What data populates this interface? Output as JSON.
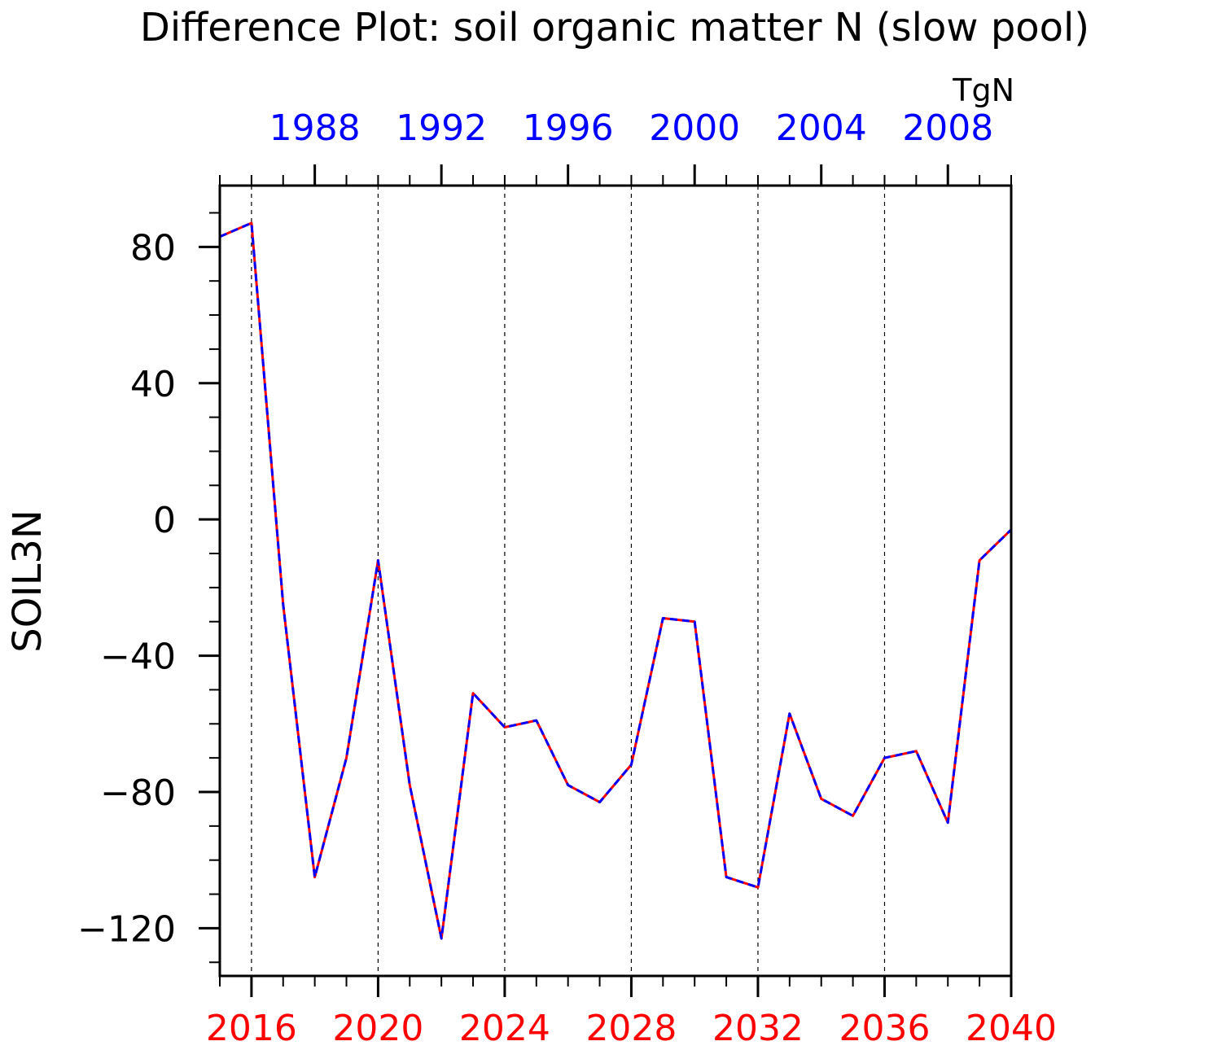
{
  "chart_data": {
    "type": "line",
    "title": "Difference Plot: soil organic matter N (slow pool)",
    "units": "TgN",
    "ylabel": "SOIL3N",
    "ylim": [
      -134,
      98
    ],
    "yticks": [
      -120,
      -80,
      -40,
      0,
      40,
      80
    ],
    "ytick_labels": [
      "−120",
      "−80",
      "−40",
      "0",
      "40",
      "80"
    ],
    "grid": "vertical dashed",
    "x_bottom": {
      "range": [
        2015,
        2040
      ],
      "ticks": [
        2016,
        2020,
        2024,
        2028,
        2032,
        2036,
        2040
      ],
      "color": "#ff0000"
    },
    "x_top": {
      "range": [
        1985,
        2010
      ],
      "ticks": [
        1988,
        1992,
        1996,
        2000,
        2004,
        2008
      ],
      "color": "#0000ff"
    },
    "x": [
      2015,
      2016,
      2017,
      2018,
      2019,
      2020,
      2021,
      2022,
      2023,
      2024,
      2025,
      2026,
      2027,
      2028,
      2029,
      2030,
      2031,
      2032,
      2033,
      2034,
      2035,
      2036,
      2037,
      2038,
      2039,
      2040
    ],
    "series": [
      {
        "color": "#ff0000",
        "style": "solid",
        "values": [
          83,
          87,
          -25,
          -105,
          -70,
          -12,
          -78,
          -123,
          -51,
          -61,
          -59,
          -78,
          -83,
          -72,
          -29,
          -30,
          -105,
          -108,
          -57,
          -82,
          -87,
          -70,
          -68,
          -89,
          -12,
          -3
        ]
      },
      {
        "color": "#0000ff",
        "style": "dashed",
        "values": [
          83,
          87,
          -25,
          -105,
          -70,
          -12,
          -78,
          -123,
          -51,
          -61,
          -59,
          -78,
          -83,
          -72,
          -29,
          -30,
          -105,
          -108,
          -57,
          -82,
          -87,
          -70,
          -68,
          -89,
          -12,
          -3
        ]
      }
    ]
  }
}
